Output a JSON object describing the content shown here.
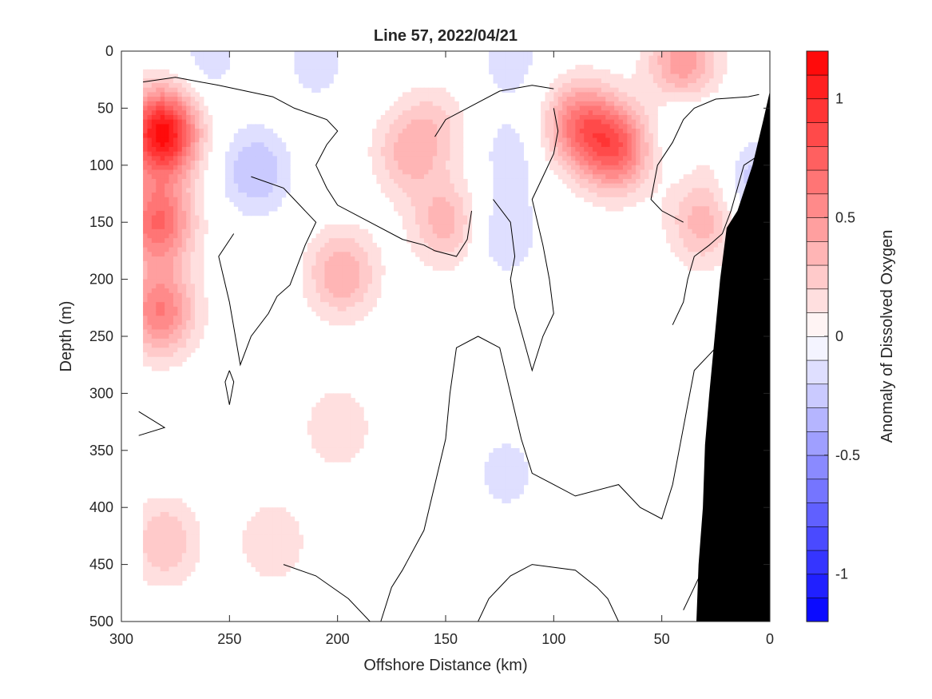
{
  "chart_data": {
    "type": "heatmap",
    "title": "Line 57, 2022/04/21",
    "xlabel": "Offshore Distance (km)",
    "ylabel": "Depth (m)",
    "colorbar_label": "Anomaly of Dissolved Oxygen",
    "xlim": [
      300,
      0
    ],
    "ylim": [
      0,
      500
    ],
    "x_reversed": true,
    "y_reversed": true,
    "x_ticks": [
      300,
      250,
      200,
      150,
      100,
      50,
      0
    ],
    "y_ticks": [
      0,
      50,
      100,
      150,
      200,
      250,
      300,
      350,
      400,
      450,
      500
    ],
    "colorbar_range": [
      -1.2,
      1.2
    ],
    "colorbar_ticks": [
      -1,
      -0.5,
      0,
      0.5,
      1
    ],
    "colorbar_levels": 24,
    "color_negative": "#0000ff",
    "color_positive": "#ff0000",
    "color_zero": "#ffffff",
    "data_extent_x": [
      290,
      0
    ],
    "anomaly_features": [
      {
        "x": 281,
        "depth": 72,
        "value": 1.15
      },
      {
        "x": 283,
        "depth": 150,
        "value": 0.7
      },
      {
        "x": 282,
        "depth": 228,
        "value": 0.6
      },
      {
        "x": 238,
        "depth": 105,
        "value": -0.3
      },
      {
        "x": 198,
        "depth": 195,
        "value": 0.4
      },
      {
        "x": 200,
        "depth": 330,
        "value": 0.2
      },
      {
        "x": 168,
        "depth": 90,
        "value": 0.3
      },
      {
        "x": 150,
        "depth": 150,
        "value": 0.35
      },
      {
        "x": 155,
        "depth": 65,
        "value": 0.2
      },
      {
        "x": 123,
        "depth": 160,
        "value": -0.2
      },
      {
        "x": 120,
        "depth": 90,
        "value": -0.15
      },
      {
        "x": 122,
        "depth": 370,
        "value": -0.15
      },
      {
        "x": 88,
        "depth": 65,
        "value": 0.6
      },
      {
        "x": 71,
        "depth": 85,
        "value": 0.7
      },
      {
        "x": 40,
        "depth": 10,
        "value": 0.5
      },
      {
        "x": 31,
        "depth": 150,
        "value": 0.35
      },
      {
        "x": 210,
        "depth": 10,
        "value": -0.15
      },
      {
        "x": 260,
        "depth": 8,
        "value": -0.15
      },
      {
        "x": 120,
        "depth": 8,
        "value": -0.15
      },
      {
        "x": 280,
        "depth": 430,
        "value": 0.3
      },
      {
        "x": 230,
        "depth": 430,
        "value": 0.2
      },
      {
        "x": 25,
        "depth": 90,
        "value": 0.2
      },
      {
        "x": 37,
        "depth": 66,
        "value": -0.2
      },
      {
        "x": 10,
        "depth": 110,
        "value": -0.3
      }
    ],
    "zero_contours": [
      [
        [
          290,
          27
        ],
        [
          275,
          23
        ],
        [
          255,
          30
        ],
        [
          230,
          40
        ],
        [
          220,
          50
        ],
        [
          205,
          60
        ],
        [
          200,
          70
        ],
        [
          205,
          82
        ],
        [
          210,
          100
        ],
        [
          205,
          120
        ],
        [
          200,
          135
        ],
        [
          185,
          150
        ],
        [
          170,
          165
        ],
        [
          160,
          170
        ],
        [
          155,
          175
        ],
        [
          145,
          180
        ],
        [
          140,
          165
        ],
        [
          138,
          140
        ]
      ],
      [
        [
          248,
          160
        ],
        [
          255,
          180
        ],
        [
          250,
          220
        ],
        [
          245,
          275
        ],
        [
          240,
          250
        ],
        [
          232,
          230
        ],
        [
          228,
          215
        ],
        [
          222,
          205
        ],
        [
          215,
          170
        ],
        [
          210,
          150
        ],
        [
          220,
          130
        ],
        [
          225,
          120
        ],
        [
          240,
          110
        ]
      ],
      [
        [
          155,
          75
        ],
        [
          150,
          60
        ],
        [
          140,
          50
        ],
        [
          125,
          35
        ],
        [
          110,
          30
        ],
        [
          100,
          33
        ]
      ],
      [
        [
          128,
          130
        ],
        [
          120,
          150
        ],
        [
          118,
          180
        ],
        [
          120,
          200
        ],
        [
          118,
          225
        ],
        [
          110,
          280
        ],
        [
          105,
          250
        ],
        [
          100,
          230
        ],
        [
          102,
          200
        ],
        [
          105,
          170
        ],
        [
          110,
          130
        ],
        [
          105,
          110
        ],
        [
          100,
          90
        ],
        [
          98,
          70
        ],
        [
          100,
          50
        ]
      ],
      [
        [
          292,
          316
        ],
        [
          280,
          330
        ],
        [
          292,
          337
        ]
      ],
      [
        [
          250,
          280
        ],
        [
          248,
          290
        ],
        [
          250,
          310
        ],
        [
          252,
          290
        ],
        [
          250,
          280
        ]
      ],
      [
        [
          180,
          500
        ],
        [
          175,
          470
        ],
        [
          170,
          455
        ],
        [
          160,
          420
        ],
        [
          155,
          380
        ],
        [
          150,
          340
        ],
        [
          148,
          300
        ],
        [
          145,
          260
        ],
        [
          135,
          250
        ],
        [
          125,
          260
        ],
        [
          120,
          300
        ],
        [
          115,
          340
        ],
        [
          110,
          370
        ],
        [
          100,
          380
        ],
        [
          90,
          390
        ],
        [
          70,
          380
        ],
        [
          60,
          400
        ],
        [
          50,
          410
        ],
        [
          45,
          380
        ],
        [
          40,
          330
        ],
        [
          38,
          310
        ],
        [
          35,
          280
        ],
        [
          25,
          260
        ],
        [
          12,
          240
        ],
        [
          5,
          230
        ]
      ],
      [
        [
          185,
          500
        ],
        [
          195,
          480
        ],
        [
          210,
          460
        ],
        [
          225,
          450
        ]
      ],
      [
        [
          135,
          500
        ],
        [
          130,
          480
        ],
        [
          120,
          460
        ],
        [
          110,
          450
        ],
        [
          90,
          455
        ],
        [
          80,
          470
        ],
        [
          75,
          480
        ],
        [
          70,
          500
        ]
      ],
      [
        [
          40,
          490
        ],
        [
          35,
          470
        ],
        [
          30,
          450
        ],
        [
          25,
          440
        ],
        [
          18,
          430
        ],
        [
          5,
          420
        ]
      ],
      [
        [
          45,
          240
        ],
        [
          40,
          220
        ],
        [
          38,
          200
        ],
        [
          35,
          180
        ],
        [
          28,
          170
        ],
        [
          22,
          160
        ],
        [
          18,
          140
        ],
        [
          15,
          120
        ],
        [
          12,
          100
        ],
        [
          8,
          95
        ],
        [
          4,
          90
        ]
      ],
      [
        [
          40,
          150
        ],
        [
          50,
          140
        ],
        [
          55,
          130
        ],
        [
          52,
          100
        ],
        [
          45,
          80
        ],
        [
          40,
          60
        ],
        [
          35,
          50
        ],
        [
          25,
          42
        ],
        [
          10,
          40
        ],
        [
          5,
          38
        ]
      ]
    ],
    "bathymetry_profile": [
      {
        "x": 0,
        "depth": 35
      },
      {
        "x": 3,
        "depth": 60
      },
      {
        "x": 8,
        "depth": 100
      },
      {
        "x": 15,
        "depth": 140
      },
      {
        "x": 20,
        "depth": 155
      },
      {
        "x": 23,
        "depth": 200
      },
      {
        "x": 26,
        "depth": 260
      },
      {
        "x": 28,
        "depth": 300
      },
      {
        "x": 30,
        "depth": 345
      },
      {
        "x": 31,
        "depth": 400
      },
      {
        "x": 33,
        "depth": 450
      },
      {
        "x": 34,
        "depth": 500
      }
    ]
  }
}
